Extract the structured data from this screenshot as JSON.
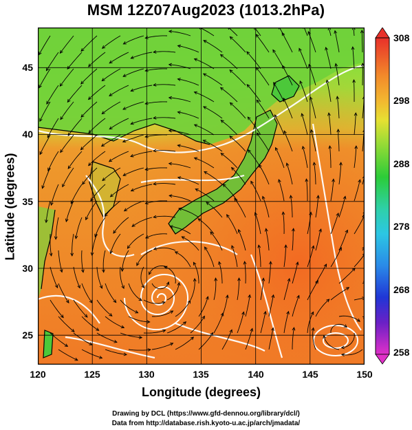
{
  "title": "MSM 12Z07Aug2023 (1013.2hPa)",
  "xaxis": {
    "label": "Longitude (degrees)",
    "ticks": [
      "120",
      "125",
      "130",
      "135",
      "140",
      "145",
      "150"
    ]
  },
  "yaxis": {
    "label": "Latitude  (degrees)",
    "ticks": [
      "25",
      "30",
      "35",
      "40",
      "45"
    ]
  },
  "colorbar": {
    "ticks": [
      "308",
      "298",
      "288",
      "278",
      "268",
      "258"
    ]
  },
  "credits": {
    "line1": "Drawing by DCL (https://www.gfd-dennou.org/library/dcl/)",
    "line2": "Data from http://database.rish.kyoto-u.ac.jp/arch/jmadata/"
  },
  "map": {
    "extent": {
      "lon": [
        120,
        150
      ],
      "lat": [
        22.4,
        47.6
      ]
    },
    "features": {
      "typhoon_center": {
        "lon": 131.3,
        "lat": 28.7
      },
      "anticyclonic_eddy": {
        "lon": 147.3,
        "lat": 24.8
      }
    },
    "colors": {
      "warm_ocean": "#f08c2a",
      "cool_land": "#8fdc3c",
      "green": "#38c838",
      "contour": "#ffffff",
      "streamline": "#000000",
      "coast": "#000000"
    }
  }
}
